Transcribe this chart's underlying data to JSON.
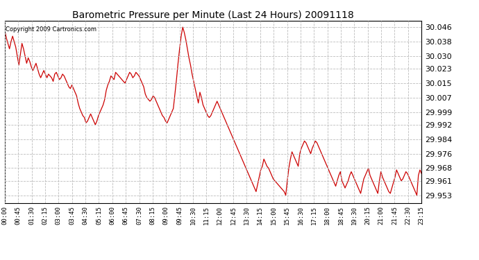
{
  "title": "Barometric Pressure per Minute (Last 24 Hours) 20091118",
  "copyright": "Copyright 2009 Cartronics.com",
  "line_color": "#cc0000",
  "background_color": "#ffffff",
  "grid_color": "#bbbbbb",
  "y_ticks": [
    29.953,
    29.961,
    29.968,
    29.976,
    29.984,
    29.992,
    29.999,
    30.007,
    30.015,
    30.023,
    30.03,
    30.038,
    30.046
  ],
  "ylim": [
    29.9488,
    30.0495
  ],
  "x_labels": [
    "00:00",
    "00:45",
    "01:30",
    "02:15",
    "03:00",
    "03:45",
    "04:30",
    "05:15",
    "06:00",
    "06:45",
    "07:30",
    "08:15",
    "09:00",
    "09:45",
    "10:30",
    "11:15",
    "12:00",
    "12:45",
    "13:30",
    "14:15",
    "15:00",
    "15:45",
    "16:30",
    "17:15",
    "18:00",
    "18:45",
    "19:30",
    "20:15",
    "21:00",
    "21:45",
    "22:30",
    "23:15"
  ],
  "pressure_data": [
    30.044,
    30.04,
    30.037,
    30.034,
    30.038,
    30.041,
    30.038,
    30.035,
    30.03,
    30.025,
    30.031,
    30.037,
    30.034,
    30.03,
    30.026,
    30.029,
    30.027,
    30.024,
    30.022,
    30.024,
    30.026,
    30.023,
    30.02,
    30.018,
    30.02,
    30.022,
    30.02,
    30.018,
    30.02,
    30.019,
    30.018,
    30.016,
    30.02,
    30.021,
    30.019,
    30.017,
    30.018,
    30.02,
    30.019,
    30.017,
    30.015,
    30.013,
    30.012,
    30.014,
    30.012,
    30.01,
    30.008,
    30.004,
    30.001,
    29.999,
    29.997,
    29.996,
    29.993,
    29.994,
    29.996,
    29.998,
    29.996,
    29.994,
    29.992,
    29.994,
    29.997,
    29.999,
    30.001,
    30.003,
    30.006,
    30.011,
    30.014,
    30.016,
    30.019,
    30.018,
    30.017,
    30.021,
    30.02,
    30.019,
    30.018,
    30.017,
    30.016,
    30.015,
    30.017,
    30.019,
    30.021,
    30.02,
    30.018,
    30.019,
    30.021,
    30.02,
    30.019,
    30.017,
    30.015,
    30.013,
    30.009,
    30.007,
    30.006,
    30.005,
    30.006,
    30.008,
    30.007,
    30.005,
    30.003,
    30.001,
    29.999,
    29.997,
    29.996,
    29.994,
    29.993,
    29.995,
    29.997,
    29.999,
    30.001,
    30.009,
    30.017,
    30.026,
    30.034,
    30.041,
    30.046,
    30.043,
    30.039,
    30.034,
    30.029,
    30.025,
    30.02,
    30.016,
    30.012,
    30.008,
    30.004,
    30.01,
    30.007,
    30.003,
    30.001,
    29.999,
    29.997,
    29.996,
    29.997,
    29.999,
    30.001,
    30.003,
    30.005,
    30.003,
    30.001,
    29.999,
    29.997,
    29.995,
    29.993,
    29.991,
    29.989,
    29.987,
    29.985,
    29.983,
    29.981,
    29.979,
    29.977,
    29.975,
    29.973,
    29.971,
    29.969,
    29.967,
    29.965,
    29.963,
    29.961,
    29.959,
    29.957,
    29.955,
    29.959,
    29.963,
    29.967,
    29.969,
    29.973,
    29.971,
    29.969,
    29.968,
    29.966,
    29.964,
    29.962,
    29.961,
    29.96,
    29.959,
    29.958,
    29.957,
    29.956,
    29.955,
    29.953,
    29.961,
    29.968,
    29.973,
    29.977,
    29.975,
    29.973,
    29.971,
    29.969,
    29.976,
    29.979,
    29.981,
    29.983,
    29.982,
    29.98,
    29.978,
    29.976,
    29.979,
    29.981,
    29.983,
    29.982,
    29.98,
    29.978,
    29.976,
    29.974,
    29.972,
    29.97,
    29.968,
    29.966,
    29.964,
    29.962,
    29.96,
    29.958,
    29.961,
    29.964,
    29.966,
    29.961,
    29.959,
    29.957,
    29.959,
    29.961,
    29.964,
    29.966,
    29.964,
    29.962,
    29.96,
    29.958,
    29.956,
    29.954,
    29.958,
    29.962,
    29.964,
    29.966,
    29.968,
    29.964,
    29.962,
    29.96,
    29.958,
    29.956,
    29.954,
    29.961,
    29.966,
    29.963,
    29.961,
    29.959,
    29.957,
    29.955,
    29.954,
    29.957,
    29.96,
    29.963,
    29.967,
    29.965,
    29.963,
    29.961,
    29.962,
    29.964,
    29.966,
    29.965,
    29.963,
    29.961,
    29.959,
    29.957,
    29.955,
    29.953,
    29.964,
    29.967,
    29.965
  ]
}
